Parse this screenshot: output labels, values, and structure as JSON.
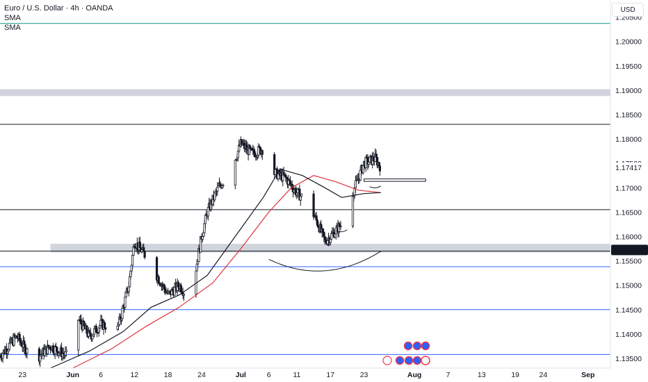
{
  "legend": {
    "title": "Euro / U.S. Dollar · 4h · OANDA",
    "indicators": [
      "SMA",
      "SMA"
    ]
  },
  "currency_button": "USD",
  "colors": {
    "candle": "#131722",
    "sma_fast": "#131722",
    "sma_slow": "#e0303a",
    "zone": "#d1d4dc",
    "level_black": "#131722",
    "level_blue": "#2962ff",
    "level_teal": "#089981",
    "current_tag_bg": "#131722",
    "current_tag_text": "#ffffff"
  },
  "icons": [
    "flash-icon",
    "event-icon",
    "flag-icon"
  ],
  "chart_data": {
    "type": "candlestick",
    "title": "Euro / U.S. Dollar · 4h · OANDA",
    "symbol": "EURUSD",
    "timeframe": "4h",
    "source": "OANDA",
    "ylim": [
      1.133,
      1.2085
    ],
    "price_ticks": [
      1.205,
      1.2,
      1.195,
      1.19,
      1.185,
      1.18,
      1.175,
      1.17,
      1.165,
      1.16,
      1.155,
      1.15,
      1.145,
      1.14,
      1.135
    ],
    "price_tick_labels": [
      "1.20500",
      "1.20000",
      "1.19500",
      "1.19000",
      "1.18500",
      "1.18000",
      "1.17500",
      "1.17000",
      "1.16500",
      "1.16000",
      "1.15500",
      "1.15000",
      "1.14500",
      "1.14000",
      "1.13500"
    ],
    "current_price_label": "1.15716",
    "last_price_label": "1.17417",
    "time_axis": [
      {
        "label": "23",
        "date": "2025-05-23"
      },
      {
        "label": "Jun",
        "date": "2025-06-01",
        "bold": true
      },
      {
        "label": "6",
        "date": "2025-06-06"
      },
      {
        "label": "12",
        "date": "2025-06-12"
      },
      {
        "label": "18",
        "date": "2025-06-18"
      },
      {
        "label": "24",
        "date": "2025-06-24"
      },
      {
        "label": "Jul",
        "date": "2025-07-01",
        "bold": true
      },
      {
        "label": "6",
        "date": "2025-07-06"
      },
      {
        "label": "11",
        "date": "2025-07-11"
      },
      {
        "label": "17",
        "date": "2025-07-17"
      },
      {
        "label": "23",
        "date": "2025-07-23"
      },
      {
        "label": "Aug",
        "date": "2025-08-01",
        "bold": true
      },
      {
        "label": "7",
        "date": "2025-08-07"
      },
      {
        "label": "13",
        "date": "2025-08-13"
      },
      {
        "label": "19",
        "date": "2025-08-19"
      },
      {
        "label": "24",
        "date": "2025-08-24"
      },
      {
        "label": "Sep",
        "date": "2025-09-01",
        "bold": true
      }
    ],
    "xlim": [
      "2025-05-19",
      "2025-09-05"
    ],
    "close_path": [
      {
        "date": "2025-05-19",
        "close": 1.1355
      },
      {
        "date": "2025-05-22",
        "close": 1.1395
      },
      {
        "date": "2025-05-25",
        "close": 1.1345
      },
      {
        "date": "2025-05-28",
        "close": 1.1375
      },
      {
        "date": "2025-05-31",
        "close": 1.1355
      },
      {
        "date": "2025-06-02",
        "close": 1.143
      },
      {
        "date": "2025-06-04",
        "close": 1.1395
      },
      {
        "date": "2025-06-06",
        "close": 1.142
      },
      {
        "date": "2025-06-09",
        "close": 1.141
      },
      {
        "date": "2025-06-11",
        "close": 1.15
      },
      {
        "date": "2025-06-12",
        "close": 1.159
      },
      {
        "date": "2025-06-14",
        "close": 1.156
      },
      {
        "date": "2025-06-16",
        "close": 1.152
      },
      {
        "date": "2025-06-18",
        "close": 1.148
      },
      {
        "date": "2025-06-20",
        "close": 1.15
      },
      {
        "date": "2025-06-22",
        "close": 1.147
      },
      {
        "date": "2025-06-24",
        "close": 1.16
      },
      {
        "date": "2025-06-25",
        "close": 1.165
      },
      {
        "date": "2025-06-27",
        "close": 1.17
      },
      {
        "date": "2025-06-29",
        "close": 1.173
      },
      {
        "date": "2025-07-01",
        "close": 1.179
      },
      {
        "date": "2025-07-03",
        "close": 1.177
      },
      {
        "date": "2025-07-05",
        "close": 1.178
      },
      {
        "date": "2025-07-07",
        "close": 1.173
      },
      {
        "date": "2025-07-09",
        "close": 1.172
      },
      {
        "date": "2025-07-11",
        "close": 1.169
      },
      {
        "date": "2025-07-13",
        "close": 1.167
      },
      {
        "date": "2025-07-15",
        "close": 1.162
      },
      {
        "date": "2025-07-16",
        "close": 1.159
      },
      {
        "date": "2025-07-17",
        "close": 1.16
      },
      {
        "date": "2025-07-19",
        "close": 1.1625
      },
      {
        "date": "2025-07-21",
        "close": 1.169
      },
      {
        "date": "2025-07-23",
        "close": 1.175
      },
      {
        "date": "2025-07-25",
        "close": 1.176
      },
      {
        "date": "2025-07-26",
        "close": 1.1742
      }
    ],
    "sma_fast": [
      {
        "date": "2025-05-28",
        "value": 1.133
      },
      {
        "date": "2025-06-04",
        "value": 1.1365
      },
      {
        "date": "2025-06-10",
        "value": 1.1405
      },
      {
        "date": "2025-06-15",
        "value": 1.1455
      },
      {
        "date": "2025-06-20",
        "value": 1.148
      },
      {
        "date": "2025-06-25",
        "value": 1.152
      },
      {
        "date": "2025-06-30",
        "value": 1.16
      },
      {
        "date": "2025-07-05",
        "value": 1.168
      },
      {
        "date": "2025-07-08",
        "value": 1.1738
      },
      {
        "date": "2025-07-12",
        "value": 1.1725
      },
      {
        "date": "2025-07-16",
        "value": 1.17
      },
      {
        "date": "2025-07-19",
        "value": 1.168
      },
      {
        "date": "2025-07-23",
        "value": 1.1688
      },
      {
        "date": "2025-07-26",
        "value": 1.169
      }
    ],
    "sma_slow": [
      {
        "date": "2025-06-01",
        "value": 1.133
      },
      {
        "date": "2025-06-08",
        "value": 1.137
      },
      {
        "date": "2025-06-14",
        "value": 1.1415
      },
      {
        "date": "2025-06-20",
        "value": 1.1455
      },
      {
        "date": "2025-06-26",
        "value": 1.1505
      },
      {
        "date": "2025-07-01",
        "value": 1.1575
      },
      {
        "date": "2025-07-06",
        "value": 1.165
      },
      {
        "date": "2025-07-10",
        "value": 1.17
      },
      {
        "date": "2025-07-14",
        "value": 1.1725
      },
      {
        "date": "2025-07-18",
        "value": 1.1712
      },
      {
        "date": "2025-07-22",
        "value": 1.1695
      },
      {
        "date": "2025-07-26",
        "value": 1.169
      }
    ],
    "horizontal_levels": [
      {
        "price": 1.2037,
        "color": "teal"
      },
      {
        "price": 1.183,
        "color": "black"
      },
      {
        "price": 1.1655,
        "color": "black"
      },
      {
        "price": 1.157,
        "color": "black"
      },
      {
        "price": 1.1538,
        "color": "blue"
      },
      {
        "price": 1.145,
        "color": "blue"
      },
      {
        "price": 1.1358,
        "color": "blue"
      }
    ],
    "zones": [
      {
        "from": 1.1888,
        "to": 1.1902,
        "start": "2025-05-19",
        "end": "2025-09-05"
      },
      {
        "from": 1.1567,
        "to": 1.1585,
        "start": "2025-05-28",
        "end": "2025-09-05"
      },
      {
        "from": 1.1713,
        "to": 1.1718,
        "start": "2025-07-23",
        "end": "2025-08-03"
      }
    ],
    "annotations": [
      {
        "type": "arc",
        "from_date": "2025-07-06",
        "to_date": "2025-07-26",
        "price": 1.1553
      },
      {
        "type": "arc",
        "from_date": "2025-07-18",
        "to_date": "2025-07-20",
        "price": 1.1612
      },
      {
        "type": "arc",
        "from_date": "2025-07-24",
        "to_date": "2025-07-26",
        "price": 1.1702
      }
    ]
  }
}
